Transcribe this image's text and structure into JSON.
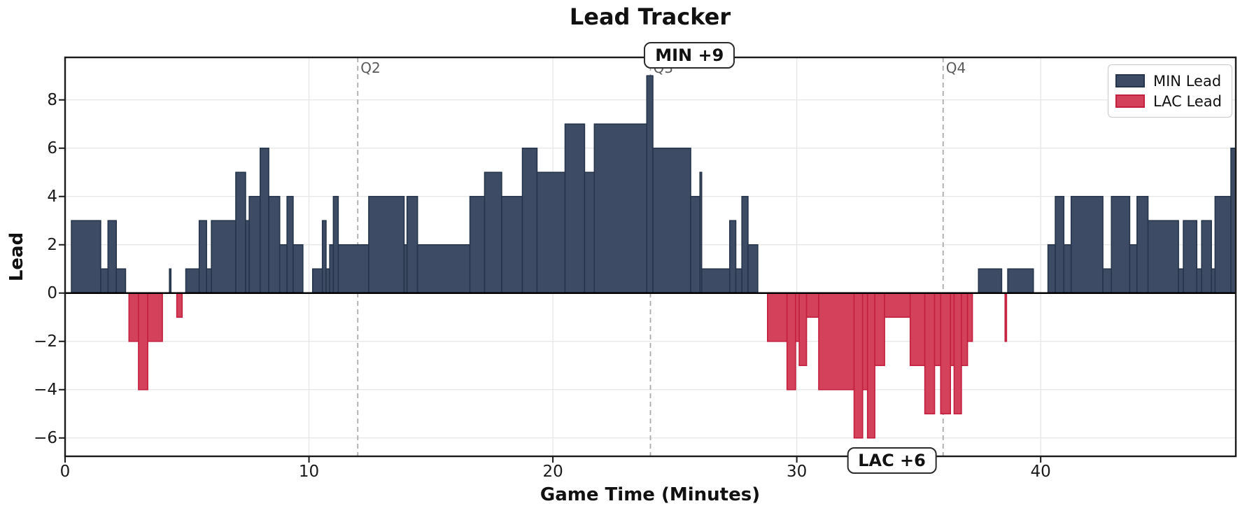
{
  "title": "Lead Tracker",
  "chart_data": {
    "type": "area",
    "subtype": "step-post-filled",
    "title": "Lead Tracker",
    "xlabel": "Game Time (Minutes)",
    "ylabel": "Lead",
    "xlim": [
      0,
      48
    ],
    "ylim": [
      -6.76,
      9.76
    ],
    "grid": true,
    "legend_position": "upper right",
    "x_ticks": [
      {
        "v": 0,
        "label": "0"
      },
      {
        "v": 10,
        "label": "10"
      },
      {
        "v": 20,
        "label": "20"
      },
      {
        "v": 30,
        "label": "30"
      },
      {
        "v": 40,
        "label": "40"
      }
    ],
    "y_ticks": [
      {
        "v": -6,
        "label": "−6"
      },
      {
        "v": -4,
        "label": "−4"
      },
      {
        "v": -2,
        "label": "−2"
      },
      {
        "v": 0,
        "label": "0"
      },
      {
        "v": 2,
        "label": "2"
      },
      {
        "v": 4,
        "label": "4"
      },
      {
        "v": 6,
        "label": "6"
      },
      {
        "v": 8,
        "label": "8"
      }
    ],
    "quarters": [
      {
        "label": "Q2",
        "t": 12
      },
      {
        "label": "Q3",
        "t": 24
      },
      {
        "label": "Q4",
        "t": 36
      }
    ],
    "series": [
      {
        "name": "MIN Lead",
        "fill": "#3D4C64",
        "edge": "#26354B"
      },
      {
        "name": "LAC Lead",
        "fill": "#D4415B",
        "edge": "#C2203F"
      }
    ],
    "annotations": [
      {
        "label": "MIN +9",
        "t": 25.6,
        "position": "top"
      },
      {
        "label": "LAC +6",
        "t": 33.9,
        "position": "bottom"
      }
    ],
    "steps": [
      [
        0,
        0
      ],
      [
        0.26,
        3
      ],
      [
        1.46,
        1
      ],
      [
        1.76,
        3
      ],
      [
        2.1,
        1
      ],
      [
        2.48,
        0
      ],
      [
        2.62,
        -2
      ],
      [
        3.01,
        -4
      ],
      [
        3.39,
        -2
      ],
      [
        3.99,
        0
      ],
      [
        4.28,
        1
      ],
      [
        4.34,
        0
      ],
      [
        4.58,
        -1
      ],
      [
        4.8,
        0
      ],
      [
        4.95,
        1
      ],
      [
        5.5,
        3
      ],
      [
        5.8,
        1
      ],
      [
        6.0,
        3
      ],
      [
        7.0,
        5
      ],
      [
        7.4,
        3
      ],
      [
        7.55,
        4
      ],
      [
        8.0,
        6
      ],
      [
        8.35,
        4
      ],
      [
        8.8,
        2
      ],
      [
        9.1,
        4
      ],
      [
        9.35,
        2
      ],
      [
        9.75,
        0
      ],
      [
        10.15,
        1
      ],
      [
        10.55,
        3
      ],
      [
        10.7,
        1
      ],
      [
        10.85,
        2
      ],
      [
        11.0,
        4
      ],
      [
        11.2,
        2
      ],
      [
        12.45,
        4
      ],
      [
        13.9,
        2
      ],
      [
        14.02,
        4
      ],
      [
        14.45,
        2
      ],
      [
        16.6,
        4
      ],
      [
        17.2,
        5
      ],
      [
        17.9,
        4
      ],
      [
        18.75,
        6
      ],
      [
        19.35,
        5
      ],
      [
        20.5,
        7
      ],
      [
        21.3,
        5
      ],
      [
        21.7,
        7
      ],
      [
        23.85,
        9
      ],
      [
        24.1,
        6
      ],
      [
        25.65,
        4
      ],
      [
        26.03,
        5
      ],
      [
        26.1,
        1
      ],
      [
        27.25,
        3
      ],
      [
        27.5,
        1
      ],
      [
        27.75,
        4
      ],
      [
        28.0,
        2
      ],
      [
        28.4,
        0
      ],
      [
        28.8,
        -2
      ],
      [
        29.6,
        -4
      ],
      [
        29.95,
        -2
      ],
      [
        30.1,
        -3
      ],
      [
        30.4,
        -1
      ],
      [
        30.9,
        -4
      ],
      [
        32.35,
        -6
      ],
      [
        32.7,
        -4
      ],
      [
        32.9,
        -6
      ],
      [
        33.2,
        -3
      ],
      [
        33.6,
        -1
      ],
      [
        34.65,
        -3
      ],
      [
        35.25,
        -5
      ],
      [
        35.65,
        -3
      ],
      [
        35.9,
        -5
      ],
      [
        36.3,
        -3
      ],
      [
        36.45,
        -5
      ],
      [
        36.75,
        -3
      ],
      [
        37.0,
        -2
      ],
      [
        37.2,
        0
      ],
      [
        37.45,
        1
      ],
      [
        38.4,
        0
      ],
      [
        38.54,
        -2
      ],
      [
        38.6,
        0
      ],
      [
        38.65,
        1
      ],
      [
        39.7,
        0
      ],
      [
        40.3,
        2
      ],
      [
        40.6,
        4
      ],
      [
        40.95,
        2
      ],
      [
        41.25,
        4
      ],
      [
        42.55,
        1
      ],
      [
        42.9,
        4
      ],
      [
        43.65,
        2
      ],
      [
        43.95,
        4
      ],
      [
        44.4,
        3
      ],
      [
        45.65,
        1
      ],
      [
        45.85,
        3
      ],
      [
        46.4,
        1
      ],
      [
        46.6,
        3
      ],
      [
        47.0,
        1
      ],
      [
        47.15,
        4
      ],
      [
        47.8,
        6
      ],
      [
        48,
        6
      ]
    ],
    "style_colors": {
      "gridline": "#E6E6E6",
      "quarter_line": "#ABABAB",
      "spine": "#1a1a1a",
      "zero_line": "#000000"
    }
  }
}
